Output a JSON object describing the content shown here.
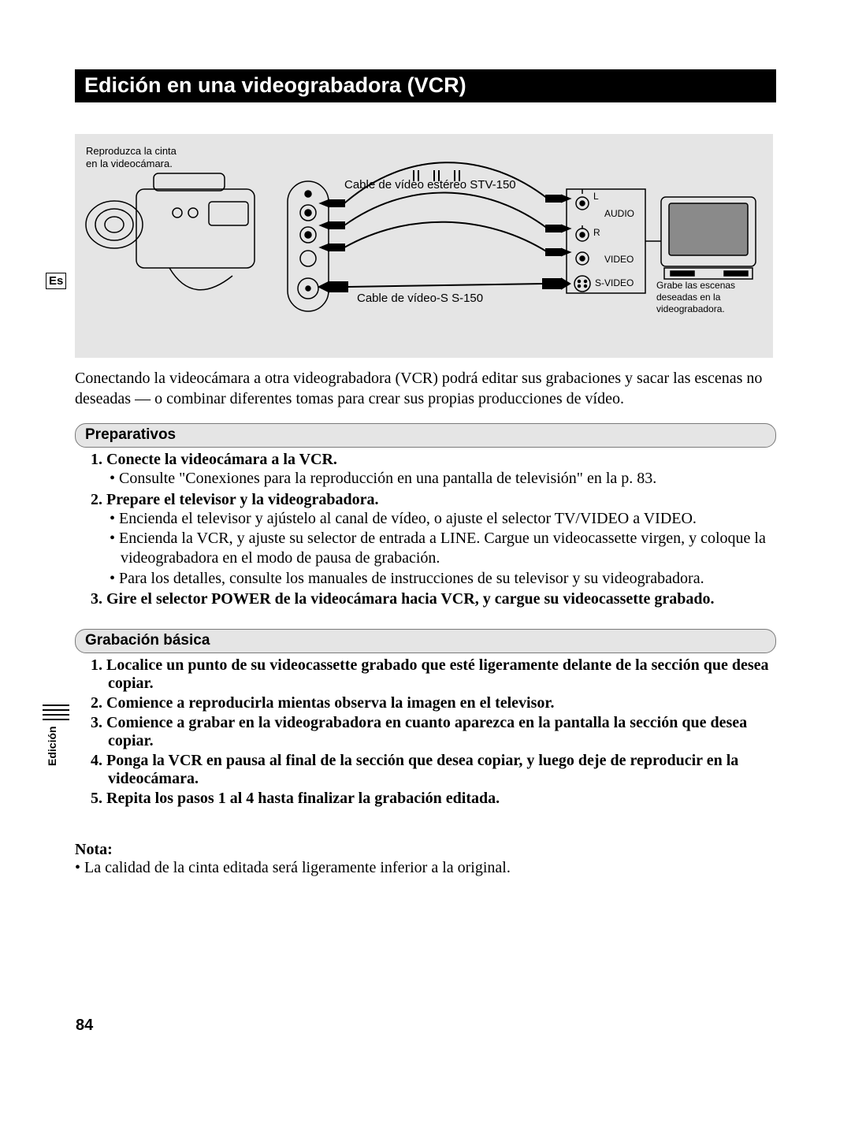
{
  "title": "Edición en una videograbadora (VCR)",
  "lang_badge": "Es",
  "side_label": "Edición",
  "page_number": "84",
  "diagram": {
    "caption_top_left": "Reproduzca la cinta\nen la videocámara.",
    "caption_bottom_right": "Grabe las escenas deseadas en la videograbadora.",
    "cable_label_top": "Cable de vídeo estéreo STV-150",
    "cable_label_bottom": "Cable de vídeo-S S-150",
    "port_L": "L",
    "port_R": "R",
    "port_audio": "AUDIO",
    "port_video": "VIDEO",
    "port_svideo": "S-VIDEO",
    "bg_color": "#e5e5e5",
    "line_color": "#000000"
  },
  "intro": "Conectando la videocámara a otra videograbadora (VCR) podrá editar sus grabaciones y sacar las escenas no deseadas — o combinar diferentes tomas para crear sus propias producciones de vídeo.",
  "section1": {
    "heading": "Preparativos",
    "steps": [
      {
        "head": "1. Conecte la videocámara a la VCR.",
        "bullets": [
          "Consulte \"Conexiones para la reproducción en una pantalla de televisión\" en la p. 83."
        ]
      },
      {
        "head": "2. Prepare el televisor y la videograbadora.",
        "bullets": [
          "Encienda el televisor y ajústelo al canal de vídeo, o ajuste el selector TV/VIDEO a VIDEO.",
          "Encienda la VCR, y ajuste su selector de entrada a LINE. Cargue un videocassette virgen, y coloque la videograbadora en el modo de pausa de grabación.",
          "Para los detalles, consulte los manuales de instrucciones de su televisor y su videograbadora."
        ]
      },
      {
        "head": "3. Gire el selector POWER de la videocámara hacia VCR, y cargue su videocassette grabado.",
        "bullets": []
      }
    ]
  },
  "section2": {
    "heading": "Grabación básica",
    "steps": [
      {
        "head": "1. Localice un punto de su videocassette grabado que esté ligeramente delante de la sección que desea copiar."
      },
      {
        "head": "2. Comience a reproducirla mientas observa la imagen en el televisor."
      },
      {
        "head": "3. Comience a grabar en la videograbadora en cuanto aparezca en la pantalla la sección que desea copiar."
      },
      {
        "head": "4. Ponga la VCR en pausa al final de la sección que desea copiar, y luego deje de reproducir en la videocámara."
      },
      {
        "head": "5. Repita los pasos 1 al 4 hasta finalizar la grabación editada."
      }
    ]
  },
  "note": {
    "head": "Nota:",
    "body": "La calidad de la cinta editada será ligeramente inferior a la original."
  }
}
